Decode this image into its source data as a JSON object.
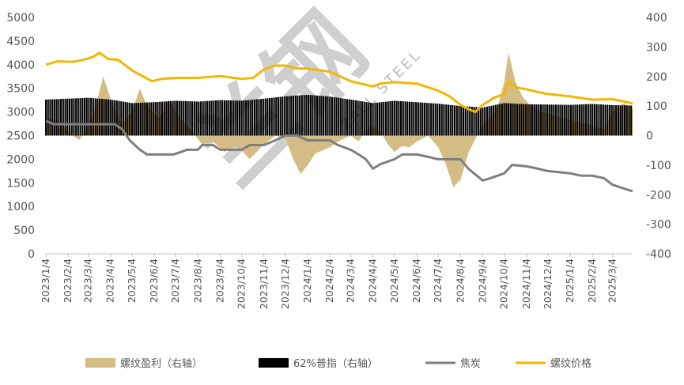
{
  "chart_data": {
    "type": "combo",
    "title": "",
    "left_axis": {
      "range": [
        0,
        5000
      ],
      "ticks": [
        "5000",
        "4500",
        "4000",
        "3500",
        "3000",
        "2500",
        "2000",
        "1500",
        "1000",
        "500",
        "0"
      ]
    },
    "right_axis": {
      "range": [
        -400,
        400
      ],
      "ticks": [
        "400",
        "300",
        "200",
        "100",
        "0",
        "-100",
        "-200",
        "-300",
        "-400"
      ]
    },
    "x_tick_labels": [
      "2023/1/4",
      "2023/2/4",
      "2023/3/4",
      "2023/4/4",
      "2023/5/4",
      "2023/6/4",
      "2023/7/4",
      "2023/8/4",
      "2023/9/4",
      "2023/10/4",
      "2023/11/4",
      "2023/12/4",
      "2024/1/4",
      "2024/2/4",
      "2024/3/4",
      "2024/4/4",
      "2024/5/4",
      "2024/6/4",
      "2024/7/4",
      "2024/8/4",
      "2024/9/4",
      "2024/10/4",
      "2024/11/4",
      "2024/12/4",
      "2025/1/4",
      "2025/2/4",
      "2025/3/4"
    ],
    "x_range": [
      "2023-01-04",
      "2025-04-01"
    ],
    "legend": {
      "position": "bottom"
    },
    "grid": false,
    "series": [
      {
        "name": "螺纹盈利（右轴）",
        "kind": "area",
        "axis": "right",
        "color": "#d4bd84",
        "points": [
          [
            "2023-01-04",
            60
          ],
          [
            "2023-01-20",
            50
          ],
          [
            "2023-02-10",
            0
          ],
          [
            "2023-02-20",
            -15
          ],
          [
            "2023-03-10",
            60
          ],
          [
            "2023-03-25",
            200
          ],
          [
            "2023-04-05",
            120
          ],
          [
            "2023-04-20",
            40
          ],
          [
            "2023-05-04",
            80
          ],
          [
            "2023-05-15",
            160
          ],
          [
            "2023-05-25",
            100
          ],
          [
            "2023-06-10",
            60
          ],
          [
            "2023-06-25",
            120
          ],
          [
            "2023-07-10",
            60
          ],
          [
            "2023-07-25",
            20
          ],
          [
            "2023-08-10",
            -30
          ],
          [
            "2023-08-25",
            -20
          ],
          [
            "2023-09-10",
            -55
          ],
          [
            "2023-09-25",
            -35
          ],
          [
            "2023-10-04",
            -50
          ],
          [
            "2023-10-15",
            -80
          ],
          [
            "2023-10-25",
            -55
          ],
          [
            "2023-11-04",
            -30
          ],
          [
            "2023-11-20",
            0
          ],
          [
            "2023-12-04",
            -10
          ],
          [
            "2023-12-15",
            -80
          ],
          [
            "2023-12-25",
            -130
          ],
          [
            "2024-01-04",
            -100
          ],
          [
            "2024-01-15",
            -60
          ],
          [
            "2024-01-25",
            -50
          ],
          [
            "2024-02-04",
            -40
          ],
          [
            "2024-02-15",
            -20
          ],
          [
            "2024-03-04",
            0
          ],
          [
            "2024-03-15",
            -20
          ],
          [
            "2024-03-25",
            20
          ],
          [
            "2024-04-04",
            30
          ],
          [
            "2024-04-15",
            10
          ],
          [
            "2024-04-25",
            -30
          ],
          [
            "2024-05-04",
            -55
          ],
          [
            "2024-05-15",
            -35
          ],
          [
            "2024-05-25",
            -40
          ],
          [
            "2024-06-04",
            -20
          ],
          [
            "2024-06-20",
            0
          ],
          [
            "2024-07-04",
            -40
          ],
          [
            "2024-07-15",
            -100
          ],
          [
            "2024-07-25",
            -175
          ],
          [
            "2024-08-04",
            -150
          ],
          [
            "2024-08-15",
            -60
          ],
          [
            "2024-08-25",
            -10
          ],
          [
            "2024-09-04",
            40
          ],
          [
            "2024-09-15",
            60
          ],
          [
            "2024-09-25",
            100
          ],
          [
            "2024-10-04",
            180
          ],
          [
            "2024-10-10",
            280
          ],
          [
            "2024-10-20",
            180
          ],
          [
            "2024-10-30",
            130
          ],
          [
            "2024-11-10",
            100
          ],
          [
            "2024-11-25",
            80
          ],
          [
            "2024-12-10",
            70
          ],
          [
            "2024-12-25",
            60
          ],
          [
            "2025-01-10",
            50
          ],
          [
            "2025-01-25",
            40
          ],
          [
            "2025-02-04",
            35
          ],
          [
            "2025-02-20",
            20
          ],
          [
            "2025-03-04",
            80
          ],
          [
            "2025-03-20",
            110
          ],
          [
            "2025-04-01",
            90
          ]
        ]
      },
      {
        "name": "62%普指（右轴）",
        "kind": "bar",
        "axis": "right",
        "color": "#000000",
        "points": [
          [
            "2023-01-04",
            122
          ],
          [
            "2023-02-04",
            125
          ],
          [
            "2023-03-04",
            128
          ],
          [
            "2023-04-04",
            122
          ],
          [
            "2023-05-04",
            110
          ],
          [
            "2023-06-04",
            113
          ],
          [
            "2023-07-04",
            118
          ],
          [
            "2023-08-04",
            115
          ],
          [
            "2023-09-04",
            120
          ],
          [
            "2023-10-04",
            118
          ],
          [
            "2023-11-04",
            125
          ],
          [
            "2023-12-04",
            133
          ],
          [
            "2024-01-04",
            138
          ],
          [
            "2024-02-04",
            132
          ],
          [
            "2024-03-04",
            122
          ],
          [
            "2024-04-04",
            110
          ],
          [
            "2024-05-04",
            118
          ],
          [
            "2024-06-04",
            113
          ],
          [
            "2024-07-04",
            108
          ],
          [
            "2024-08-04",
            100
          ],
          [
            "2024-09-04",
            95
          ],
          [
            "2024-10-04",
            110
          ],
          [
            "2024-11-04",
            106
          ],
          [
            "2024-12-04",
            105
          ],
          [
            "2025-01-04",
            104
          ],
          [
            "2025-02-04",
            107
          ],
          [
            "2025-03-04",
            103
          ],
          [
            "2025-04-01",
            102
          ]
        ]
      },
      {
        "name": "焦炭",
        "kind": "line",
        "axis": "left",
        "color": "#7f7f7f",
        "points": [
          [
            "2023-01-04",
            2810
          ],
          [
            "2023-01-15",
            2740
          ],
          [
            "2023-04-10",
            2740
          ],
          [
            "2023-04-20",
            2640
          ],
          [
            "2023-05-01",
            2400
          ],
          [
            "2023-05-15",
            2200
          ],
          [
            "2023-05-25",
            2100
          ],
          [
            "2023-06-04",
            2100
          ],
          [
            "2023-07-01",
            2100
          ],
          [
            "2023-07-20",
            2200
          ],
          [
            "2023-08-04",
            2200
          ],
          [
            "2023-08-10",
            2300
          ],
          [
            "2023-08-25",
            2300
          ],
          [
            "2023-09-04",
            2200
          ],
          [
            "2023-10-04",
            2200
          ],
          [
            "2023-10-15",
            2300
          ],
          [
            "2023-11-04",
            2300
          ],
          [
            "2023-11-20",
            2400
          ],
          [
            "2023-12-04",
            2500
          ],
          [
            "2023-12-20",
            2500
          ],
          [
            "2024-01-04",
            2400
          ],
          [
            "2024-02-04",
            2400
          ],
          [
            "2024-02-15",
            2300
          ],
          [
            "2024-03-04",
            2200
          ],
          [
            "2024-03-15",
            2100
          ],
          [
            "2024-03-25",
            2000
          ],
          [
            "2024-04-04",
            1800
          ],
          [
            "2024-04-15",
            1900
          ],
          [
            "2024-05-04",
            2000
          ],
          [
            "2024-05-15",
            2100
          ],
          [
            "2024-06-04",
            2100
          ],
          [
            "2024-06-20",
            2050
          ],
          [
            "2024-07-04",
            2000
          ],
          [
            "2024-08-04",
            2000
          ],
          [
            "2024-08-15",
            1800
          ],
          [
            "2024-09-04",
            1550
          ],
          [
            "2024-09-15",
            1600
          ],
          [
            "2024-10-04",
            1700
          ],
          [
            "2024-10-15",
            1880
          ],
          [
            "2024-11-04",
            1850
          ],
          [
            "2024-11-20",
            1800
          ],
          [
            "2024-12-04",
            1750
          ],
          [
            "2025-01-04",
            1700
          ],
          [
            "2025-01-20",
            1650
          ],
          [
            "2025-02-04",
            1650
          ],
          [
            "2025-02-20",
            1600
          ],
          [
            "2025-03-04",
            1460
          ],
          [
            "2025-03-20",
            1380
          ],
          [
            "2025-04-01",
            1320
          ]
        ]
      },
      {
        "name": "螺纹价格",
        "kind": "line",
        "axis": "left",
        "color": "#f2b705",
        "points": [
          [
            "2023-01-04",
            4000
          ],
          [
            "2023-01-20",
            4070
          ],
          [
            "2023-02-10",
            4060
          ],
          [
            "2023-02-25",
            4100
          ],
          [
            "2023-03-10",
            4160
          ],
          [
            "2023-03-20",
            4250
          ],
          [
            "2023-04-01",
            4120
          ],
          [
            "2023-04-15",
            4100
          ],
          [
            "2023-05-04",
            3880
          ],
          [
            "2023-05-20",
            3750
          ],
          [
            "2023-06-01",
            3650
          ],
          [
            "2023-06-15",
            3700
          ],
          [
            "2023-07-04",
            3720
          ],
          [
            "2023-08-04",
            3720
          ],
          [
            "2023-09-04",
            3760
          ],
          [
            "2023-10-04",
            3700
          ],
          [
            "2023-10-20",
            3720
          ],
          [
            "2023-11-04",
            3900
          ],
          [
            "2023-11-20",
            3980
          ],
          [
            "2023-12-04",
            3980
          ],
          [
            "2023-12-20",
            3920
          ],
          [
            "2024-01-04",
            3920
          ],
          [
            "2024-02-04",
            3850
          ],
          [
            "2024-03-04",
            3650
          ],
          [
            "2024-04-04",
            3540
          ],
          [
            "2024-04-15",
            3600
          ],
          [
            "2024-05-04",
            3630
          ],
          [
            "2024-06-04",
            3600
          ],
          [
            "2024-07-04",
            3450
          ],
          [
            "2024-07-20",
            3330
          ],
          [
            "2024-08-04",
            3150
          ],
          [
            "2024-08-15",
            3060
          ],
          [
            "2024-08-25",
            3000
          ],
          [
            "2024-09-04",
            3150
          ],
          [
            "2024-09-20",
            3300
          ],
          [
            "2024-10-04",
            3380
          ],
          [
            "2024-10-10",
            3650
          ],
          [
            "2024-10-20",
            3520
          ],
          [
            "2024-11-04",
            3480
          ],
          [
            "2024-11-20",
            3420
          ],
          [
            "2024-12-04",
            3380
          ],
          [
            "2025-01-04",
            3330
          ],
          [
            "2025-02-04",
            3260
          ],
          [
            "2025-03-04",
            3270
          ],
          [
            "2025-03-20",
            3220
          ],
          [
            "2025-04-01",
            3180
          ]
        ]
      }
    ]
  },
  "watermark": {
    "text": "兰钢",
    "subtext": "ZALL STEEL"
  }
}
